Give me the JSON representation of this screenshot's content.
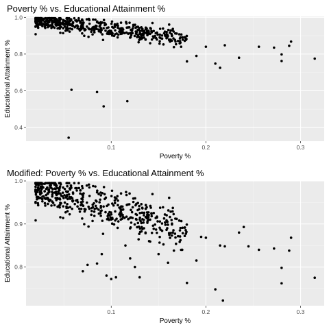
{
  "chart_data": [
    {
      "type": "scatter",
      "title": "Poverty % vs. Educational Attainment %",
      "xlabel": "Poverty %",
      "ylabel": "Educational Attainment %",
      "xlim": [
        0.01,
        0.325
      ],
      "ylim": [
        0.325,
        1.005
      ],
      "xticks": [
        0.1,
        0.2,
        0.3
      ],
      "xtick_labels": [
        "0.1",
        "0.2",
        "0.3"
      ],
      "yticks": [
        0.4,
        0.6,
        0.8,
        1.0
      ],
      "ytick_labels": [
        "0.4",
        "0.6",
        "0.8",
        "1.0"
      ],
      "grid": true,
      "panel_background": "#ebebeb",
      "point_color": "#000000",
      "points_note": "dense cloud as in second panel plus outliers",
      "x": [
        0.058,
        0.085,
        0.092,
        0.117,
        0.055,
        0.315,
        0.28,
        0.28,
        0.29,
        0.288,
        0.272,
        0.256,
        0.235,
        0.22,
        0.215,
        0.21,
        0.2,
        0.19,
        0.18
      ],
      "y": [
        0.605,
        0.593,
        0.515,
        0.543,
        0.344,
        0.775,
        0.762,
        0.798,
        0.868,
        0.845,
        0.835,
        0.84,
        0.78,
        0.848,
        0.725,
        0.748,
        0.84,
        0.79,
        0.76
      ]
    },
    {
      "type": "scatter",
      "title": "Modified: Poverty % vs. Educational Attainment %",
      "xlabel": "Poverty %",
      "ylabel": "Educational Attainment %",
      "xlim": [
        0.01,
        0.325
      ],
      "ylim": [
        0.71,
        1.0
      ],
      "xticks": [
        0.1,
        0.2,
        0.3
      ],
      "xtick_labels": [
        "0.1",
        "0.2",
        "0.3"
      ],
      "yticks": [
        0.8,
        0.9,
        1.0
      ],
      "ytick_labels": [
        "0.8",
        "0.9",
        "1.0"
      ],
      "grid": true,
      "panel_background": "#ebebeb",
      "point_color": "#000000",
      "x": [
        0.315,
        0.29,
        0.288,
        0.28,
        0.28,
        0.272,
        0.256,
        0.245,
        0.24,
        0.235,
        0.22,
        0.218,
        0.215,
        0.21,
        0.2,
        0.195,
        0.19,
        0.18,
        0.175,
        0.165,
        0.16,
        0.15,
        0.14,
        0.13,
        0.125,
        0.12,
        0.115,
        0.105,
        0.1,
        0.095,
        0.09,
        0.085,
        0.075,
        0.07
      ],
      "y": [
        0.775,
        0.868,
        0.838,
        0.762,
        0.798,
        0.843,
        0.84,
        0.848,
        0.893,
        0.88,
        0.848,
        0.722,
        0.85,
        0.748,
        0.868,
        0.87,
        0.815,
        0.763,
        0.84,
        0.88,
        0.81,
        0.83,
        0.86,
        0.776,
        0.8,
        0.82,
        0.85,
        0.776,
        0.772,
        0.78,
        0.83,
        0.808,
        0.805,
        0.79
      ]
    }
  ]
}
